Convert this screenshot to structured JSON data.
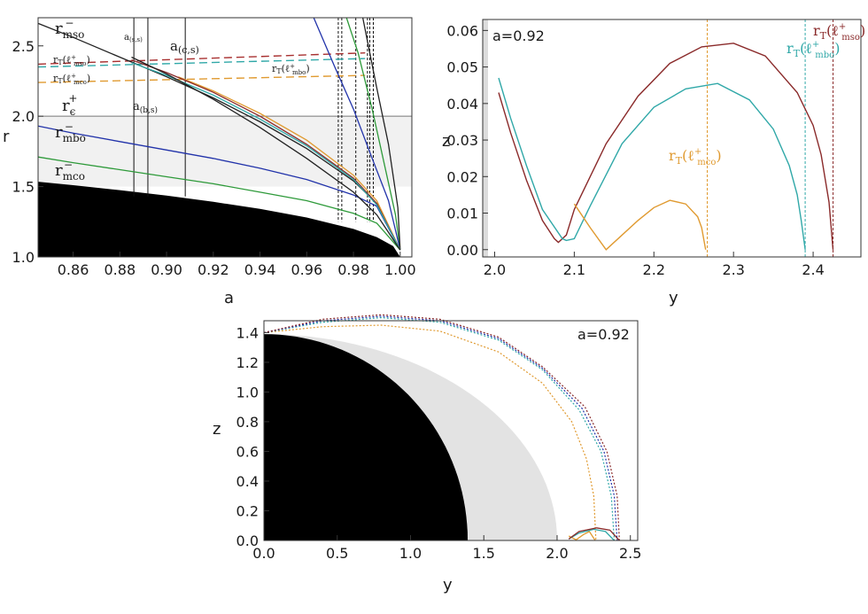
{
  "chart_data": [
    {
      "type": "line",
      "panel": "top-left",
      "xlabel": "a",
      "ylabel": "r",
      "xlim": [
        0.845,
        1.005
      ],
      "ylim": [
        1.0,
        2.7
      ],
      "xticks": [
        "0.86",
        "0.88",
        "0.90",
        "0.92",
        "0.94",
        "0.96",
        "0.98",
        "1.00"
      ],
      "yticks": [
        "1.0",
        "1.5",
        "2.0",
        "2.5"
      ],
      "horizontal_line": 2.0,
      "vertical_lines": [
        0.886,
        0.892,
        0.908
      ],
      "vertical_dashed_lines": [
        0.9735,
        0.975,
        0.981,
        0.986,
        0.987,
        0.9885
      ],
      "series": [
        {
          "color": "#222222",
          "x": [
            0.845,
            0.86,
            0.88,
            0.9,
            0.92,
            0.94,
            0.96,
            0.98,
            0.99,
            1.0
          ],
          "y": [
            2.66,
            2.56,
            2.42,
            2.28,
            2.13,
            1.96,
            1.77,
            1.54,
            1.38,
            1.05
          ]
        },
        {
          "color": "#2233aa",
          "x": [
            0.845,
            0.86,
            0.88,
            0.9,
            0.92,
            0.94,
            0.96,
            0.98,
            0.99,
            1.0
          ],
          "y": [
            1.93,
            1.88,
            1.82,
            1.76,
            1.7,
            1.63,
            1.55,
            1.44,
            1.36,
            1.05
          ]
        },
        {
          "color": "#2e9a3a",
          "x": [
            0.845,
            0.86,
            0.88,
            0.9,
            0.92,
            0.94,
            0.96,
            0.98,
            0.99,
            1.0
          ],
          "y": [
            1.71,
            1.67,
            1.62,
            1.57,
            1.52,
            1.46,
            1.4,
            1.31,
            1.24,
            1.05
          ]
        },
        {
          "color": "#2e9a3a",
          "x": [
            0.977,
            0.982,
            0.988,
            0.994,
            0.998,
            1.0
          ],
          "y": [
            2.7,
            2.45,
            2.05,
            1.6,
            1.3,
            1.05
          ]
        },
        {
          "color": "#2233aa",
          "x": [
            0.963,
            0.972,
            0.98,
            0.988,
            0.995,
            1.0
          ],
          "y": [
            2.7,
            2.35,
            2.05,
            1.7,
            1.4,
            1.05
          ]
        },
        {
          "color": "#222222",
          "x": [
            0.984,
            0.99,
            0.995,
            0.999,
            1.0
          ],
          "y": [
            2.7,
            2.2,
            1.8,
            1.35,
            1.05
          ]
        },
        {
          "color": "#e09a30",
          "x": [
            0.905,
            0.92,
            0.94,
            0.96,
            0.98,
            0.99,
            1.0
          ],
          "y": [
            2.28,
            2.18,
            2.02,
            1.83,
            1.58,
            1.4,
            1.05
          ]
        },
        {
          "color": "#8a2a2a",
          "x": [
            0.885,
            0.9,
            0.92,
            0.94,
            0.96,
            0.98,
            0.99,
            1.0
          ],
          "y": [
            2.4,
            2.31,
            2.17,
            2.0,
            1.8,
            1.56,
            1.38,
            1.05
          ]
        },
        {
          "color": "#30a8a8",
          "x": [
            0.885,
            0.9,
            0.92,
            0.94,
            0.96,
            0.98,
            0.99,
            1.0
          ],
          "y": [
            2.38,
            2.29,
            2.15,
            1.98,
            1.79,
            1.55,
            1.37,
            1.05
          ]
        },
        {
          "color": "#222222",
          "x": [
            0.885,
            0.9,
            0.92,
            0.94,
            0.96,
            0.98,
            0.99,
            1.0
          ],
          "y": [
            2.42,
            2.3,
            2.12,
            1.92,
            1.7,
            1.46,
            1.3,
            1.05
          ]
        }
      ],
      "dashed_series": [
        {
          "color": "#a83030",
          "x": [
            0.845,
            0.985
          ],
          "y": [
            2.37,
            2.45
          ]
        },
        {
          "color": "#30a8a8",
          "x": [
            0.845,
            0.985
          ],
          "y": [
            2.35,
            2.41
          ]
        },
        {
          "color": "#e09a30",
          "x": [
            0.845,
            0.985
          ],
          "y": [
            2.24,
            2.29
          ]
        }
      ],
      "annotations": {
        "r_mso": "r",
        "r_mso_sub": "mso",
        "r_mso_sup": "−",
        "rT_mso": "r",
        "rT_mso_sub": "T",
        "rT_mso_paren": "(ℓ",
        "rT_mso_sup": "+",
        "rT_mso_sub2": "mso",
        "rT_mso_close": ")",
        "rT_mco_sub2": "mco",
        "rT_mbo_sub2": "mbo",
        "r_eps": "r",
        "r_eps_sub": "ϵ",
        "r_eps_sup": "+",
        "r_mbo": "r",
        "r_mbo_sub": "mbo",
        "r_mco": "r",
        "r_mco_sub": "mco",
        "a_ss": "a",
        "a_ss_sub": "(s,s)",
        "a_cs": "a",
        "a_cs_sub": "(c,s)",
        "a_bs": "a",
        "a_bs_sub": "(b,s)"
      }
    },
    {
      "type": "line",
      "panel": "top-right",
      "xlabel": "y",
      "ylabel": "z",
      "xlim": [
        1.985,
        2.46
      ],
      "ylim": [
        -0.002,
        0.063
      ],
      "xticks": [
        "2.0",
        "2.1",
        "2.2",
        "2.3",
        "2.4"
      ],
      "yticks": [
        "0.00",
        "0.01",
        "0.02",
        "0.03",
        "0.04",
        "0.05",
        "0.06"
      ],
      "label": "a=0.92",
      "series": [
        {
          "name_label": "r",
          "sub": "T",
          "paren": "(ℓ",
          "sup": "+",
          "sub2": "mso",
          "close": ")",
          "color": "#8a2a2a",
          "x": [
            2.005,
            2.02,
            2.04,
            2.06,
            2.075,
            2.08,
            2.09,
            2.1,
            2.14,
            2.18,
            2.22,
            2.26,
            2.3,
            2.34,
            2.38,
            2.4,
            2.41,
            2.42,
            2.425
          ],
          "y": [
            0.043,
            0.032,
            0.019,
            0.008,
            0.003,
            0.002,
            0.004,
            0.011,
            0.029,
            0.042,
            0.051,
            0.0555,
            0.0565,
            0.053,
            0.043,
            0.034,
            0.026,
            0.013,
            0.0
          ]
        },
        {
          "name_label": "r",
          "sub": "T",
          "paren": "(ℓ",
          "sup": "+",
          "sub2": "mbo",
          "close": ")",
          "color": "#30a8a8",
          "x": [
            2.005,
            2.02,
            2.04,
            2.06,
            2.085,
            2.09,
            2.1,
            2.12,
            2.16,
            2.2,
            2.24,
            2.28,
            2.32,
            2.35,
            2.37,
            2.38,
            2.385,
            2.39
          ],
          "y": [
            0.047,
            0.036,
            0.023,
            0.011,
            0.003,
            0.0025,
            0.003,
            0.012,
            0.029,
            0.039,
            0.044,
            0.0455,
            0.041,
            0.033,
            0.023,
            0.015,
            0.008,
            0.0
          ]
        },
        {
          "name_label": "r",
          "sub": "T",
          "paren": "(ℓ",
          "sup": "+",
          "sub2": "mco",
          "close": ")",
          "color": "#e09a30",
          "x": [
            2.1,
            2.12,
            2.14,
            2.16,
            2.18,
            2.2,
            2.22,
            2.24,
            2.255,
            2.26,
            2.265
          ],
          "y": [
            0.0125,
            0.006,
            0.0,
            0.004,
            0.008,
            0.0115,
            0.0135,
            0.0125,
            0.009,
            0.006,
            0.0
          ]
        }
      ],
      "vertical_dashed_lines": [
        {
          "x": 2.267,
          "color": "#e09a30"
        },
        {
          "x": 2.39,
          "color": "#30a8a8"
        },
        {
          "x": 2.425,
          "color": "#8a2a2a"
        }
      ]
    },
    {
      "type": "area",
      "panel": "bottom",
      "xlabel": "y",
      "ylabel": "z",
      "xlim": [
        0.0,
        2.55
      ],
      "ylim": [
        0.0,
        1.48
      ],
      "xticks": [
        "0.0",
        "0.5",
        "1.0",
        "1.5",
        "2.0",
        "2.5"
      ],
      "yticks": [
        "0.0",
        "0.2",
        "0.4",
        "0.6",
        "0.8",
        "1.0",
        "1.2",
        "1.4"
      ],
      "label": "a=0.92",
      "regions": [
        {
          "name": "horizon",
          "color": "#000000",
          "radius_y": 1.39,
          "radius_z": 1.39
        },
        {
          "name": "ergoregion",
          "color": "#e3e3e3",
          "radius_y": 2.0,
          "radius_z": 1.39
        }
      ],
      "dotted_series": [
        {
          "color": "#e09a30",
          "x": [
            0.0,
            0.4,
            0.8,
            1.2,
            1.6,
            1.9,
            2.1,
            2.2,
            2.25,
            2.265
          ],
          "y": [
            1.4,
            1.44,
            1.45,
            1.41,
            1.27,
            1.06,
            0.8,
            0.55,
            0.3,
            0.0
          ]
        },
        {
          "color": "#30a8a8",
          "x": [
            0.0,
            0.4,
            0.8,
            1.2,
            1.6,
            1.9,
            2.15,
            2.3,
            2.37,
            2.39
          ],
          "y": [
            1.4,
            1.47,
            1.5,
            1.47,
            1.35,
            1.15,
            0.88,
            0.6,
            0.3,
            0.0
          ]
        },
        {
          "color": "#2233aa",
          "x": [
            0.0,
            0.4,
            0.8,
            1.2,
            1.6,
            1.9,
            2.17,
            2.32,
            2.39,
            2.41
          ],
          "y": [
            1.4,
            1.48,
            1.51,
            1.48,
            1.36,
            1.16,
            0.89,
            0.6,
            0.3,
            0.0
          ]
        },
        {
          "color": "#8a2a2a",
          "x": [
            0.0,
            0.4,
            0.8,
            1.2,
            1.6,
            1.9,
            2.19,
            2.34,
            2.41,
            2.425
          ],
          "y": [
            1.4,
            1.49,
            1.52,
            1.49,
            1.37,
            1.17,
            0.9,
            0.6,
            0.3,
            0.0
          ]
        }
      ],
      "small_curves": [
        {
          "color": "#e09a30",
          "x": [
            2.08,
            2.13,
            2.18,
            2.22,
            2.26
          ],
          "y": [
            0.03,
            0.005,
            0.04,
            0.06,
            0.0
          ]
        },
        {
          "color": "#30a8a8",
          "x": [
            2.08,
            2.15,
            2.25,
            2.33,
            2.39
          ],
          "y": [
            0.01,
            0.05,
            0.075,
            0.06,
            0.0
          ]
        },
        {
          "color": "#8a2a2a",
          "x": [
            2.08,
            2.15,
            2.27,
            2.36,
            2.425
          ],
          "y": [
            0.01,
            0.06,
            0.085,
            0.07,
            0.0
          ]
        }
      ]
    }
  ]
}
